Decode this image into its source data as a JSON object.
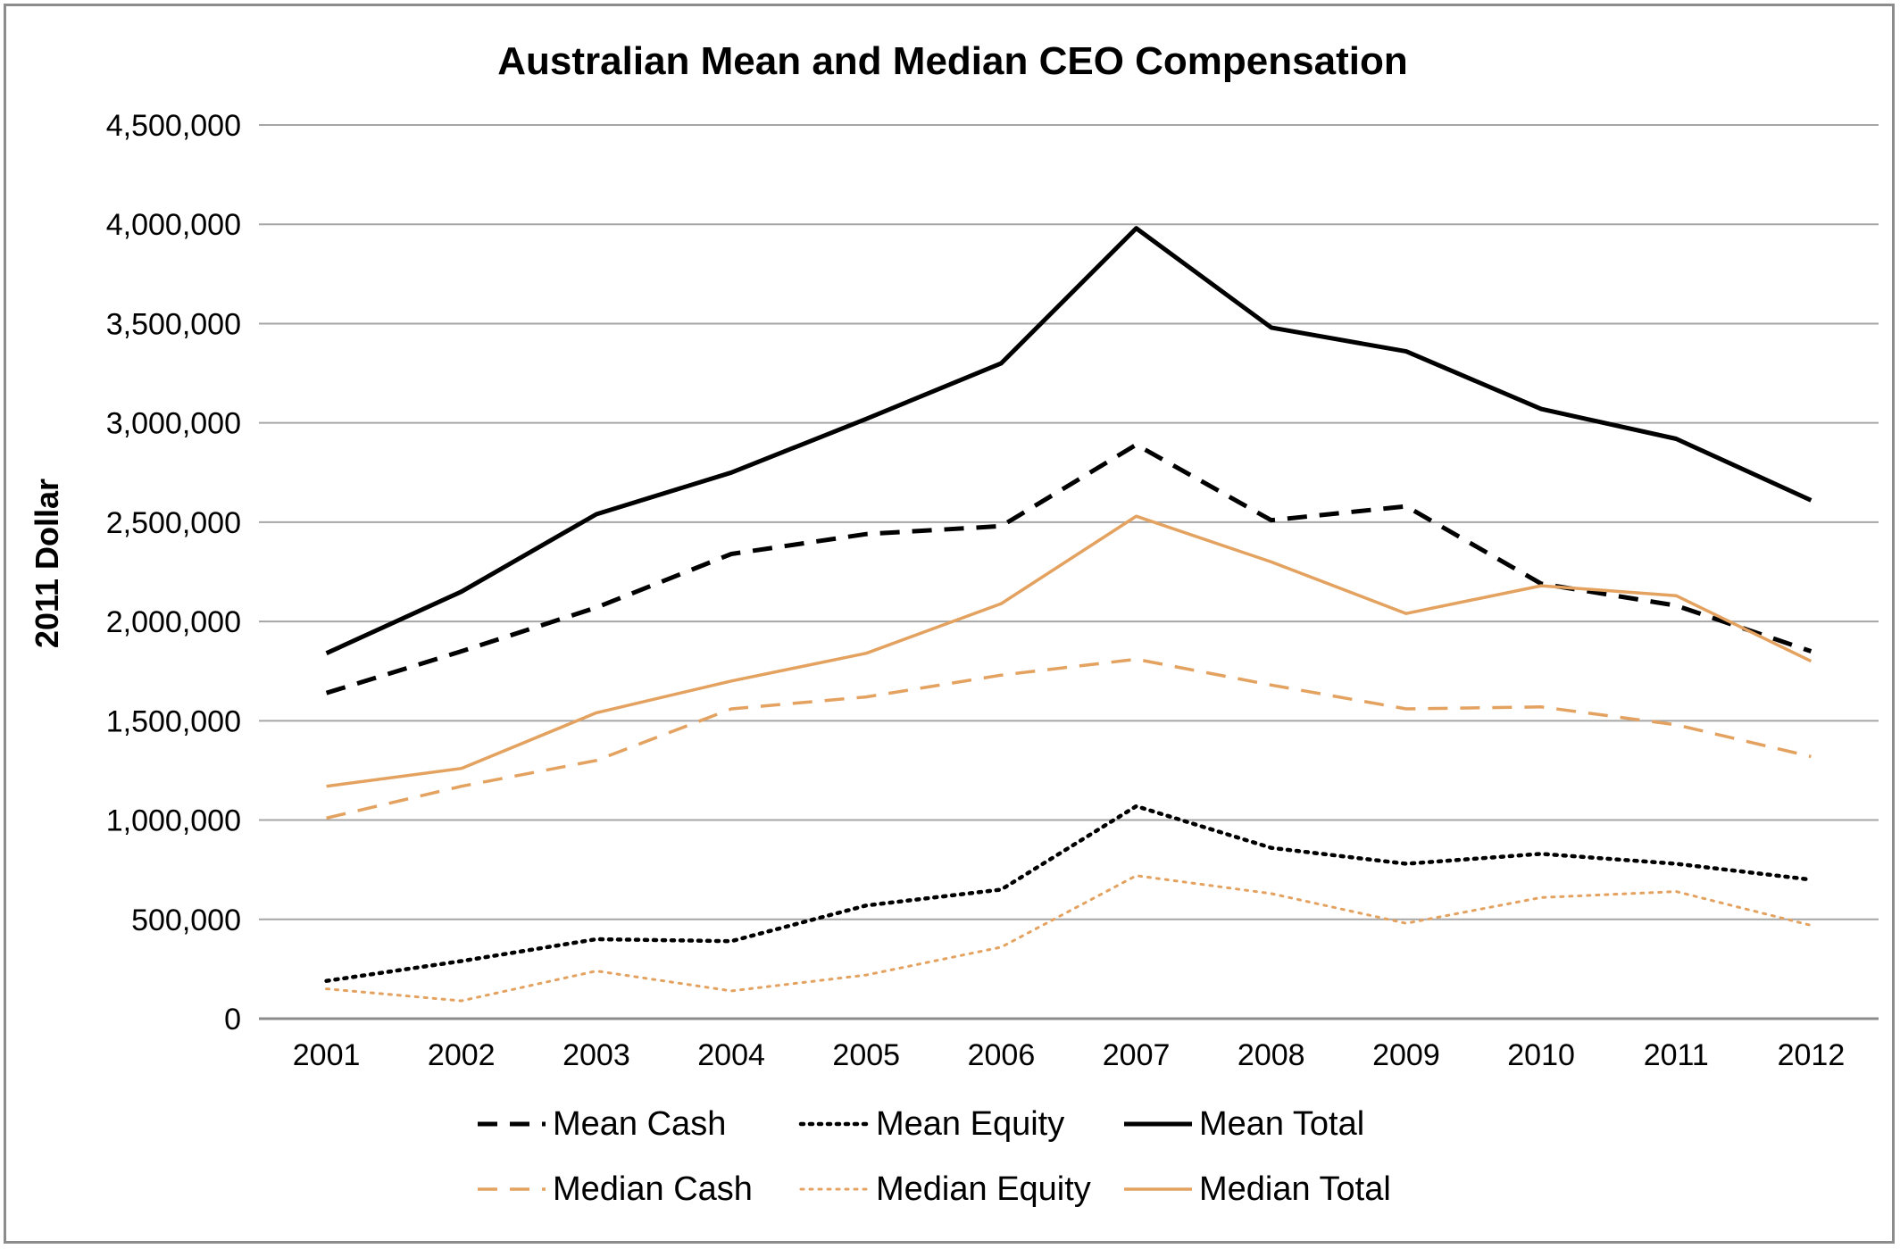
{
  "chart_data": {
    "type": "line",
    "title": "Australian Mean and Median CEO Compensation",
    "xlabel": "",
    "ylabel": "2011 Dollar",
    "ylim": [
      0,
      4500000
    ],
    "yticks": [
      0,
      500000,
      1000000,
      1500000,
      2000000,
      2500000,
      3000000,
      3500000,
      4000000,
      4500000
    ],
    "ytick_labels": [
      "0",
      "500,000",
      "1,000,000",
      "1,500,000",
      "2,000,000",
      "2,500,000",
      "3,000,000",
      "3,500,000",
      "4,000,000",
      "4,500,000"
    ],
    "categories": [
      "2001",
      "2002",
      "2003",
      "2004",
      "2005",
      "2006",
      "2007",
      "2008",
      "2009",
      "2010",
      "2011",
      "2012"
    ],
    "grid": true,
    "legend_position": "bottom",
    "series": [
      {
        "name": "Mean Cash",
        "color": "#000000",
        "style": "dashed",
        "values": [
          1640000,
          1850000,
          2070000,
          2340000,
          2440000,
          2480000,
          2890000,
          2510000,
          2580000,
          2190000,
          2080000,
          1850000
        ]
      },
      {
        "name": "Mean Equity",
        "color": "#000000",
        "style": "dotted",
        "values": [
          190000,
          290000,
          400000,
          390000,
          570000,
          650000,
          1070000,
          860000,
          780000,
          830000,
          780000,
          700000
        ]
      },
      {
        "name": "Mean Total",
        "color": "#000000",
        "style": "solid",
        "values": [
          1840000,
          2150000,
          2540000,
          2750000,
          3020000,
          3300000,
          3980000,
          3480000,
          3360000,
          3070000,
          2920000,
          2610000
        ]
      },
      {
        "name": "Median Cash",
        "color": "#e4a260",
        "style": "dashed",
        "values": [
          1010000,
          1170000,
          1300000,
          1560000,
          1620000,
          1730000,
          1810000,
          1680000,
          1560000,
          1570000,
          1480000,
          1320000
        ]
      },
      {
        "name": "Median Equity",
        "color": "#e4a260",
        "style": "dotted",
        "values": [
          150000,
          90000,
          240000,
          140000,
          220000,
          360000,
          720000,
          630000,
          480000,
          610000,
          640000,
          470000
        ]
      },
      {
        "name": "Median Total",
        "color": "#e4a260",
        "style": "solid",
        "values": [
          1170000,
          1260000,
          1540000,
          1700000,
          1840000,
          2090000,
          2530000,
          2300000,
          2040000,
          2180000,
          2130000,
          1800000
        ]
      }
    ]
  }
}
